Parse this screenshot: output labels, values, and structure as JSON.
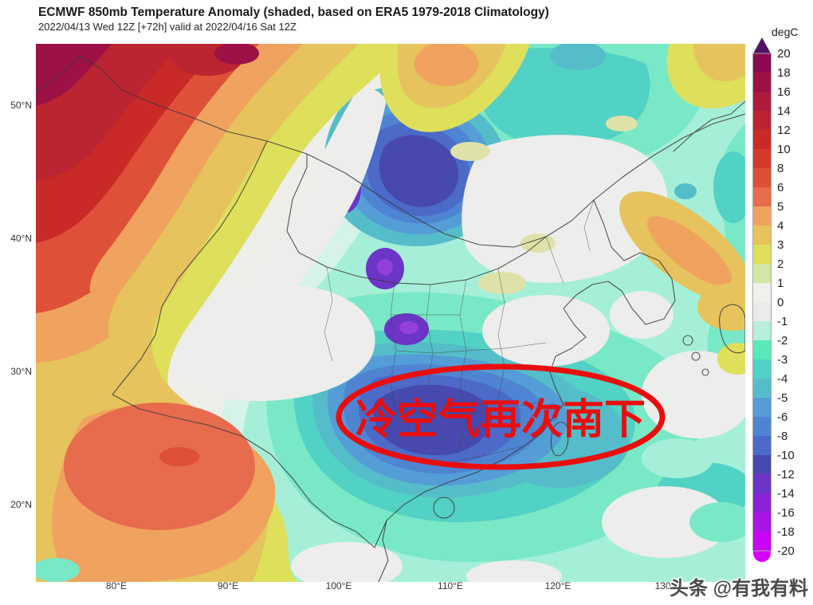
{
  "header": {
    "title": "ECMWF 850mb Temperature Anomaly (shaded, based on ERA5 1979-2018 Climatology)",
    "subtitle": "2022/04/13 Wed 12Z [+72h] valid at 2022/04/16 Sat 12Z"
  },
  "colorbar": {
    "unit_label": "degC",
    "ticks": [
      "20",
      "18",
      "16",
      "14",
      "12",
      "10",
      "8",
      "6",
      "5",
      "4",
      "3",
      "2",
      "1",
      "0",
      "-1",
      "-2",
      "-3",
      "-4",
      "-5",
      "-6",
      "-8",
      "-10",
      "-12",
      "-14",
      "-16",
      "-18",
      "-20"
    ],
    "segment_colors": [
      "#8c0a52",
      "#9d1146",
      "#ad1b3b",
      "#bb2430",
      "#c92a28",
      "#d43a2c",
      "#de4f37",
      "#e76b4d",
      "#f0a25f",
      "#e6c35c",
      "#dedf5b",
      "#d3e6a6",
      "#efefec",
      "#ebebeb",
      "#b5eeda",
      "#58e9ba",
      "#50d2c8",
      "#55bdc9",
      "#549dd6",
      "#4f84d2",
      "#4c6ac8",
      "#4749ae",
      "#6c35c8",
      "#8b22d8",
      "#a816e4",
      "#c905f5"
    ],
    "arrow_color": "#511465",
    "cap_color": "#d400fb"
  },
  "axes": {
    "lat": [
      "50°N",
      "40°N",
      "30°N",
      "20°N"
    ],
    "lon": [
      "80°E",
      "90°E",
      "100°E",
      "110°E",
      "120°E",
      "130°E"
    ]
  },
  "annotation": {
    "text": "冷空气再次南下",
    "color": "#e90e0e"
  },
  "watermark": {
    "text": "头条 @有我有料"
  }
}
